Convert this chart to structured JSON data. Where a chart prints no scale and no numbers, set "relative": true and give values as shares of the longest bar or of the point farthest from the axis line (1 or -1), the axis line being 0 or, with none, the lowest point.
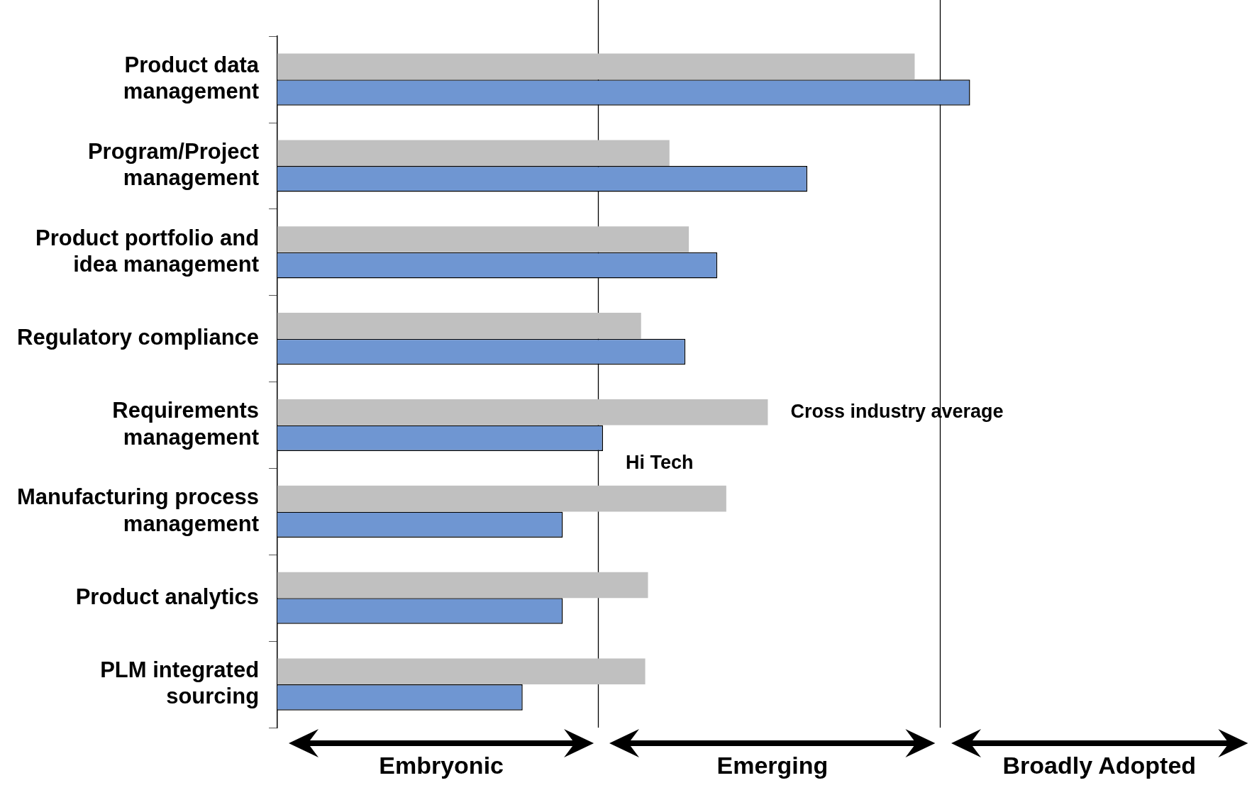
{
  "chart_data": {
    "type": "bar",
    "orientation": "horizontal",
    "relative": true,
    "legend": false,
    "grid": false,
    "categories": [
      "Product data management",
      "Program/Project management",
      "Product portfolio and idea management",
      "Regulatory compliance",
      "Requirements management",
      "Manufacturing process management",
      "Product analytics",
      "PLM integrated sourcing"
    ],
    "series": [
      {
        "name": "Cross industry average",
        "color": "#c0c0c0",
        "values": [
          0.92,
          0.566,
          0.594,
          0.525,
          0.708,
          0.648,
          0.535,
          0.531
        ]
      },
      {
        "name": "Hi Tech",
        "color": "#6f96d2",
        "values": [
          1,
          0.765,
          0.635,
          0.589,
          0.47,
          0.412,
          0.412,
          0.354
        ]
      }
    ],
    "ref_lines": [
      {
        "axis": "x",
        "value": 0.463,
        "color": "#000000"
      },
      {
        "axis": "x",
        "value": 0.956,
        "color": "#000000"
      }
    ],
    "annotations": [
      "Embryonic",
      "Emerging",
      "Broadly Adopted"
    ]
  }
}
